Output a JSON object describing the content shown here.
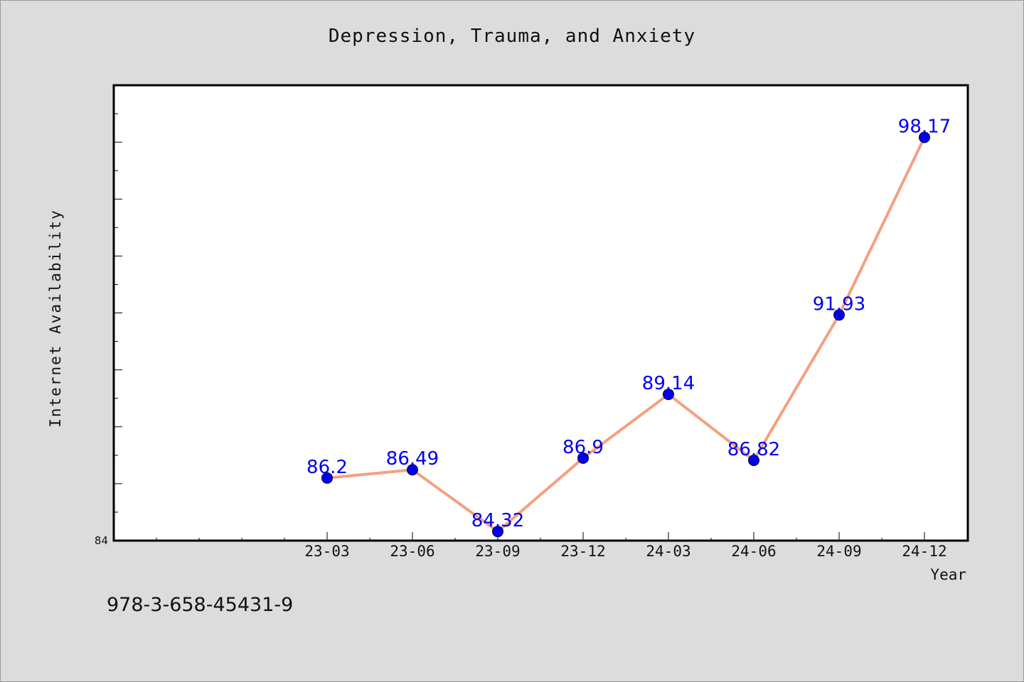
{
  "chart_data": {
    "type": "line",
    "title": "Depression, Trauma, and Anxiety",
    "xlabel": "Year",
    "ylabel": "Internet Availability",
    "categories": [
      "23-03",
      "23-06",
      "23-09",
      "23-12",
      "24-03",
      "24-06",
      "24-09",
      "24-12"
    ],
    "series": [
      {
        "values": [
          86.2,
          86.49,
          84.32,
          86.9,
          89.14,
          86.82,
          91.93,
          98.17
        ],
        "labels": [
          "86.2",
          "86.49",
          "84.32",
          "86.9",
          "89.14",
          "86.82",
          "91.93",
          "98.17"
        ],
        "line_color": "#f4a07e",
        "marker_color": "#0000ee"
      }
    ],
    "ylim": [
      84,
      100
    ],
    "y_tick_labels": [
      "84"
    ],
    "grid": false,
    "legend": "none"
  },
  "footer": {
    "isbn": "978-3-658-45431-9"
  }
}
